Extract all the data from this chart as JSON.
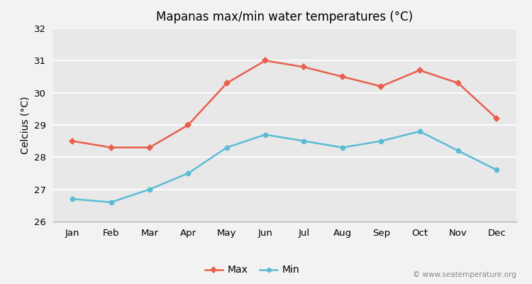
{
  "title": "Mapanas max/min water temperatures (°C)",
  "ylabel": "Celcius (°C)",
  "months": [
    "Jan",
    "Feb",
    "Mar",
    "Apr",
    "May",
    "Jun",
    "Jul",
    "Aug",
    "Sep",
    "Oct",
    "Nov",
    "Dec"
  ],
  "max_temps": [
    28.5,
    28.3,
    28.3,
    29.0,
    30.3,
    31.0,
    30.8,
    30.5,
    30.2,
    30.7,
    30.3,
    29.2
  ],
  "min_temps": [
    26.7,
    26.6,
    27.0,
    27.5,
    28.3,
    28.7,
    28.5,
    28.3,
    28.5,
    28.8,
    28.2,
    27.6
  ],
  "max_color": "#e8604c",
  "min_color": "#5bbcd6",
  "bg_color": "#f2f2f2",
  "plot_bg_color": "#e8e8e8",
  "ylim": [
    26,
    32
  ],
  "yticks": [
    26,
    27,
    28,
    29,
    30,
    31,
    32
  ],
  "legend_labels": [
    "Max",
    "Min"
  ],
  "watermark": "© www.seatemperature.org",
  "title_fontsize": 12,
  "label_fontsize": 10,
  "tick_fontsize": 9.5,
  "watermark_fontsize": 7.5
}
